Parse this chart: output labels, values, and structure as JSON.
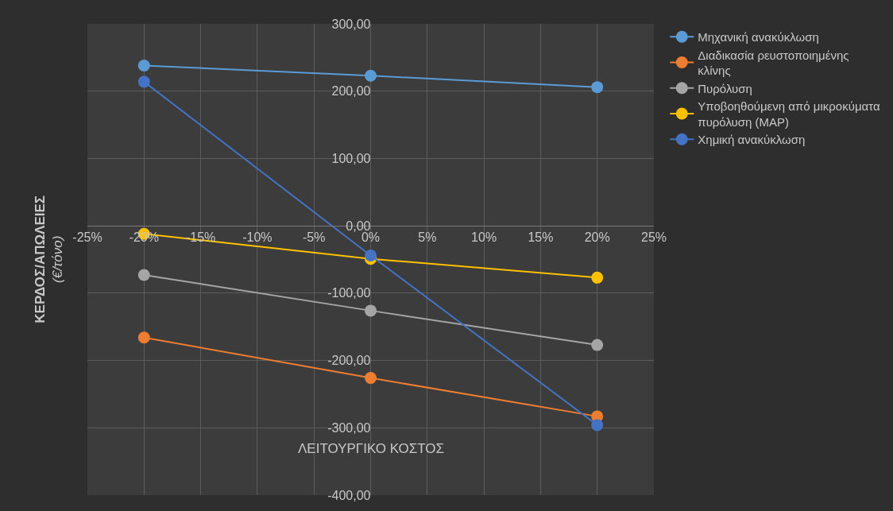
{
  "chart_data": {
    "type": "line",
    "xlabel": "ΛΕΙΤΟΥΡΓΙΚΟ ΚΟΣΤΟΣ",
    "ylabel": "ΚΕΡΔΟΣ/ΑΠΩΛΕΙΕΣ\n(€/τόνο)",
    "x": [
      -20,
      0,
      20
    ],
    "series": [
      {
        "name": "Μηχανική ανακύκλωση",
        "color": "#5b9bd5",
        "values": [
          238,
          223,
          206
        ]
      },
      {
        "name": "Διαδικασία ρευστοποιημένης κλίνης",
        "color": "#ed7d31",
        "values": [
          -166,
          -226,
          -283
        ]
      },
      {
        "name": "Πυρόλυση",
        "color": "#a5a5a5",
        "values": [
          -73,
          -126,
          -177
        ]
      },
      {
        "name": "Υποβοηθούμενη από μικροκύματα πυρόλυση (MAP)",
        "color": "#ffc000",
        "values": [
          -12,
          -49,
          -77
        ]
      },
      {
        "name": "Χημική ανακύκλωση",
        "color": "#4472c4",
        "values": [
          214,
          -44,
          -296
        ]
      }
    ],
    "xlim": [
      -25,
      25
    ],
    "xticks": [
      {
        "value": -25,
        "label": "-25%"
      },
      {
        "value": -20,
        "label": "-20%"
      },
      {
        "value": -15,
        "label": "-15%"
      },
      {
        "value": -10,
        "label": "-10%"
      },
      {
        "value": -5,
        "label": "-5%"
      },
      {
        "value": 0,
        "label": "0%"
      },
      {
        "value": 5,
        "label": "5%"
      },
      {
        "value": 10,
        "label": "10%"
      },
      {
        "value": 15,
        "label": "15%"
      },
      {
        "value": 20,
        "label": "20%"
      },
      {
        "value": 25,
        "label": "25%"
      }
    ],
    "ylim": [
      -400,
      300
    ],
    "yticks": [
      {
        "value": -400,
        "label": "-400,00"
      },
      {
        "value": -300,
        "label": "-300,00"
      },
      {
        "value": -200,
        "label": "-200,00"
      },
      {
        "value": -100,
        "label": "-100,00"
      },
      {
        "value": 0,
        "label": "0,00"
      },
      {
        "value": 100,
        "label": "100,00"
      },
      {
        "value": 200,
        "label": "200,00"
      },
      {
        "value": 300,
        "label": "300,00"
      }
    ],
    "grid": true,
    "legend": "right",
    "marker": "circle",
    "line_style": "solid"
  }
}
